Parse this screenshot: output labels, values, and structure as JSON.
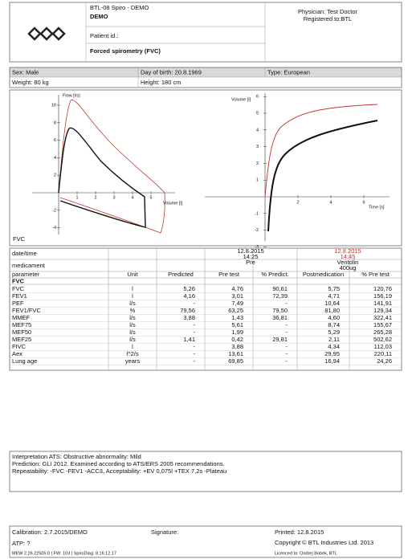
{
  "header": {
    "device": "BTL-08 Spiro - DEMO",
    "mode": "DEMO",
    "patient_id": "Patient id.:",
    "test": "Forced spirometry (FVC)",
    "physician": "Physician: Test Doctor",
    "registered": "Registered to:BTL"
  },
  "patient": {
    "sex": "Sex: Male",
    "birth": "Day of birth: 20.8.1969",
    "type": "Type: European",
    "weight": "Weight: 80 kg",
    "height": "Height: 180 cm"
  },
  "graphs": {
    "label": "FVC",
    "flow_volume": {
      "y_label": "Flow [l/s]",
      "x_label": "Volume [l]",
      "yticks": [
        "10",
        "8",
        "6",
        "4",
        "2",
        "-2",
        "-4"
      ],
      "xticks": [
        "1",
        "2",
        "3",
        "4",
        "5"
      ]
    },
    "volume_time": {
      "y_label": "Volume [l]",
      "x_label": "Time [s]",
      "yticks": [
        "6",
        "5",
        "4",
        "3",
        "2",
        "1",
        "-1",
        "-2",
        "-3"
      ],
      "xticks": [
        "2",
        "4",
        "6"
      ]
    }
  },
  "table": {
    "datetime_label": "date/time",
    "medicament_label": "medicament",
    "pre_datetime": [
      "12.8.2015",
      "14:25"
    ],
    "pre_medicament": "Pre",
    "post_datetime": [
      "12.8.2015",
      "14:45"
    ],
    "post_medicament": [
      "Ventolin",
      "400ug"
    ],
    "columns": [
      "parameter",
      "Unit",
      "Predicted",
      "Pre test",
      "% Predict.",
      "Postmedication",
      "% Pre test"
    ],
    "group": "FVC",
    "rows": [
      [
        "FVC",
        "l",
        "5,26",
        "4,76",
        "90,61",
        "5,75",
        "120,76"
      ],
      [
        "FEV1",
        "l",
        "4,16",
        "3,01",
        "72,39",
        "4,71",
        "156,19"
      ],
      [
        "PEF",
        "l/s",
        "-",
        "7,49",
        "-",
        "10,64",
        "141,91"
      ],
      [
        "FEV1/FVC",
        "%",
        "79,56",
        "63,25",
        "79,50",
        "81,80",
        "129,34"
      ],
      [
        "MMEF",
        "l/s",
        "3,88",
        "1,43",
        "36,81",
        "4,60",
        "322,41"
      ],
      [
        "MEF75",
        "l/s",
        "-",
        "5,61",
        "-",
        "8,74",
        "155,67"
      ],
      [
        "MEF50",
        "l/s",
        "-",
        "1,99",
        "-",
        "5,29",
        "265,28"
      ],
      [
        "MEF25",
        "l/s",
        "1,41",
        "0,42",
        "29,81",
        "2,11",
        "502,62"
      ],
      [
        "FIVC",
        "l",
        "-",
        "3,88",
        "-",
        "4,34",
        "112,03"
      ],
      [
        "Aex",
        "l^2/s",
        "-",
        "13,61",
        "-",
        "29,95",
        "220,11"
      ],
      [
        "Lung age",
        "years",
        "-",
        "69,85",
        "-",
        "16,94",
        "24,26"
      ]
    ]
  },
  "interpretation": [
    "Interpretation ATS: Obstructive abnormality: Mild",
    "Prediction: GLI 2012. Examined according to ATS/ERS 2005 recommendations.",
    "Repeatability: -FVC -FEV1 -ACC3, Acceptability: +EV 0,075l +TEX 7,2s -Plateau"
  ],
  "footer": {
    "calibration": "Calibration: 2.7.2015/DEMO",
    "signature": "Signature:",
    "printed": "Printed: 12.8.2015",
    "atp": "ATP: ?",
    "copyright": "Copyright © BTL Industries Ltd. 2013",
    "version": "MEW 2.26.22505.0 | FW: 103 | SpiroDiag: 8.16.12.17",
    "licence": "Licenced to: Ondrej Bobek, BTL"
  }
}
